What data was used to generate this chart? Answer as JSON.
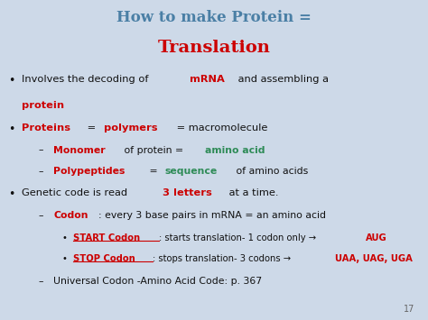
{
  "title_line1": "How to make Protein =",
  "title_line2": "Translation",
  "title_color": "#4a7fa5",
  "title2_color": "#cc0000",
  "background_color": "#cdd9e8",
  "red_color": "#cc0000",
  "teal_color": "#2e8b57",
  "black_color": "#111111",
  "page_num": "17",
  "figsize": [
    4.74,
    3.55
  ],
  "dpi": 100
}
